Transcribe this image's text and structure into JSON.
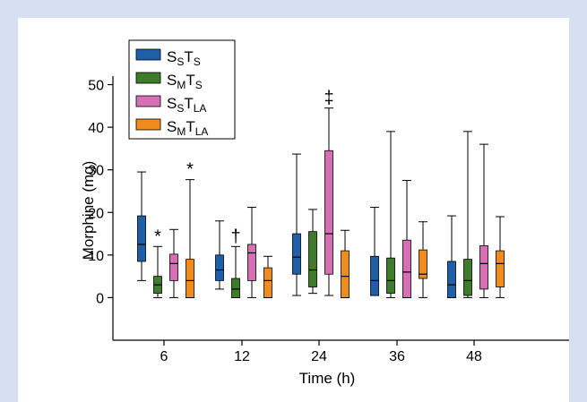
{
  "chart_data": {
    "type": "boxplot",
    "title": "",
    "xlabel": "Time (h)",
    "ylabel": "Morphine (mg)",
    "ylim": [
      -10,
      52
    ],
    "yticks": [
      0,
      10,
      20,
      30,
      40,
      50
    ],
    "categories": [
      "6",
      "12",
      "24",
      "36",
      "48"
    ],
    "grid": false,
    "legend_position": "top-left",
    "series": [
      {
        "name": "SSTS",
        "main": "S",
        "sub1": "S",
        "main2": "T",
        "sub2": "S",
        "color": "#1f5fa8",
        "boxes": [
          {
            "min": 4,
            "q1": 8.5,
            "median": 12.5,
            "q3": 19.2,
            "max": 29.5
          },
          {
            "min": 2,
            "q1": 4,
            "median": 6.5,
            "q3": 10,
            "max": 18
          },
          {
            "min": 0.5,
            "q1": 5.5,
            "median": 9.5,
            "q3": 15,
            "max": 33.7
          },
          {
            "min": 0.5,
            "q1": 0.5,
            "median": 4,
            "q3": 9.7,
            "max": 21.2
          },
          {
            "min": 0,
            "q1": 0,
            "median": 3,
            "q3": 8.5,
            "max": 19.2
          }
        ]
      },
      {
        "name": "SMTS",
        "main": "S",
        "sub1": "M",
        "main2": "T",
        "sub2": "S",
        "color": "#3e7b2a",
        "boxes": [
          {
            "min": 0,
            "q1": 1,
            "median": 3,
            "q3": 5,
            "max": 12,
            "marker": "*"
          },
          {
            "min": 0,
            "q1": 0,
            "median": 2,
            "q3": 4.5,
            "max": 12,
            "marker": "†"
          },
          {
            "min": 1,
            "q1": 2.5,
            "median": 6.5,
            "q3": 15.5,
            "max": 20.7
          },
          {
            "min": 0,
            "q1": 1,
            "median": 4,
            "q3": 9.3,
            "max": 39
          },
          {
            "min": 0,
            "q1": 0.5,
            "median": 4,
            "q3": 9,
            "max": 39
          }
        ]
      },
      {
        "name": "SSTLA",
        "main": "S",
        "sub1": "S",
        "main2": "T",
        "sub2": "LA",
        "color": "#d66fb3",
        "boxes": [
          {
            "min": 0,
            "q1": 4,
            "median": 8,
            "q3": 10.2,
            "max": 16
          },
          {
            "min": 0,
            "q1": 4,
            "median": 10.5,
            "q3": 12.5,
            "max": 21.2
          },
          {
            "min": 0.5,
            "q1": 5.5,
            "median": 15,
            "q3": 34.5,
            "max": 44.5,
            "marker": "‡"
          },
          {
            "min": 0,
            "q1": 0,
            "median": 6,
            "q3": 13.5,
            "max": 27.5
          },
          {
            "min": 0,
            "q1": 2,
            "median": 8,
            "q3": 12.2,
            "max": 36
          }
        ]
      },
      {
        "name": "SMTLA",
        "main": "S",
        "sub1": "M",
        "main2": "T",
        "sub2": "LA",
        "color": "#f08c1e",
        "boxes": [
          {
            "min": 0,
            "q1": 0,
            "median": 4,
            "q3": 9,
            "max": 27.7,
            "marker": "*"
          },
          {
            "min": 0,
            "q1": 0,
            "median": 4,
            "q3": 7,
            "max": 9.7
          },
          {
            "min": 0,
            "q1": 0,
            "median": 5,
            "q3": 11,
            "max": 15.8
          },
          {
            "min": 0,
            "q1": 4.5,
            "median": 5.5,
            "q3": 11.2,
            "max": 17.8
          },
          {
            "min": 0,
            "q1": 2.5,
            "median": 8,
            "q3": 11,
            "max": 19
          }
        ]
      }
    ]
  }
}
